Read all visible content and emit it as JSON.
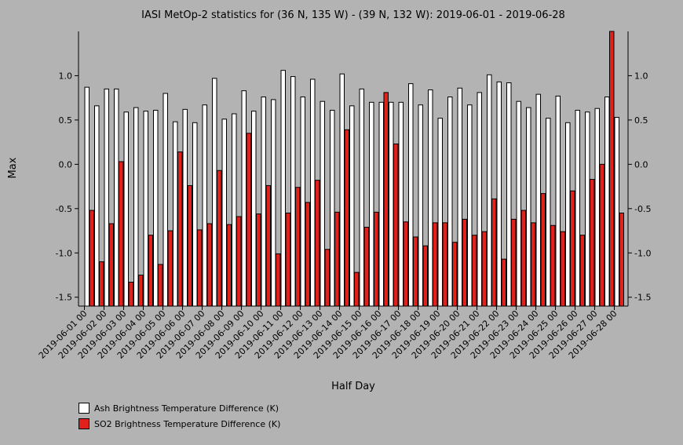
{
  "colors": {
    "background": "#b3b3b3",
    "ash": "#ffffff",
    "so2": "#e3211c",
    "axis": "#000000"
  },
  "chart_data": {
    "type": "bar",
    "title": "IASI MetOp-2 statistics for (36 N, 135 W) - (39 N, 132 W): 2019-06-01 - 2019-06-28",
    "xlabel": "Half Day",
    "ylabel": "Max",
    "ylim": [
      -1.6,
      1.5
    ],
    "yticks": [
      "-1.5",
      "-1.0",
      "-0.5",
      "0.0",
      "0.5",
      "1.0"
    ],
    "ytick_values": [
      -1.5,
      -1.0,
      -0.5,
      0.0,
      0.5,
      1.0
    ],
    "xtick_labels": [
      "2019-06-01 00",
      "2019-06-02 00",
      "2019-06-03 00",
      "2019-06-04 00",
      "2019-06-05 00",
      "2019-06-06 00",
      "2019-06-07 00",
      "2019-06-08 00",
      "2019-06-09 00",
      "2019-06-10 00",
      "2019-06-11 00",
      "2019-06-12 00",
      "2019-06-13 00",
      "2019-06-14 00",
      "2019-06-15 00",
      "2019-06-16 00",
      "2019-06-17 00",
      "2019-06-18 00",
      "2019-06-19 00",
      "2019-06-20 00",
      "2019-06-21 00",
      "2019-06-22 00",
      "2019-06-23 00",
      "2019-06-24 00",
      "2019-06-25 00",
      "2019-06-26 00",
      "2019-06-27 00",
      "2019-06-28 00"
    ],
    "grid": false,
    "legend_position": "bottom-left",
    "series": [
      {
        "name": "Ash Brightness Temperature Difference (K)",
        "color": "#ffffff",
        "values": [
          0.87,
          0.66,
          0.85,
          0.85,
          0.59,
          0.64,
          0.6,
          0.61,
          0.8,
          0.48,
          0.62,
          0.47,
          0.67,
          0.97,
          0.51,
          0.57,
          0.83,
          0.6,
          0.76,
          0.73,
          1.06,
          0.99,
          0.76,
          0.96,
          0.71,
          0.61,
          1.02,
          0.66,
          0.85,
          0.7,
          0.7,
          0.7,
          0.7,
          0.91,
          0.67,
          0.84,
          0.52,
          0.76,
          0.86,
          0.67,
          0.81,
          1.01,
          0.93,
          0.92,
          0.71,
          0.64,
          0.79,
          0.52,
          0.77,
          0.47,
          0.61,
          0.59,
          0.63,
          0.76,
          0.53
        ]
      },
      {
        "name": "SO2 Brightness Temperature Difference (K)",
        "color": "#e3211c",
        "values": [
          -0.52,
          -1.1,
          -0.67,
          0.03,
          -1.33,
          -1.25,
          -0.8,
          -1.13,
          -0.75,
          0.14,
          -0.24,
          -0.74,
          -0.67,
          -0.07,
          -0.68,
          -0.59,
          0.35,
          -0.56,
          -0.24,
          -1.01,
          -0.55,
          -0.26,
          -0.43,
          -0.18,
          -0.96,
          -0.54,
          0.39,
          -1.22,
          -0.71,
          -0.54,
          0.81,
          0.23,
          -0.65,
          -0.82,
          -0.92,
          -0.66,
          -0.66,
          -0.88,
          -0.62,
          -0.8,
          -0.76,
          -0.39,
          -1.07,
          -0.62,
          -0.52,
          -0.66,
          -0.33,
          -0.69,
          -0.76,
          -0.3,
          -0.8,
          -0.17,
          0.0,
          1.5,
          -0.55
        ]
      }
    ]
  }
}
